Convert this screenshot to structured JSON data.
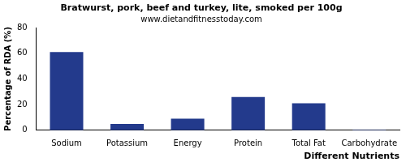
{
  "chart_data": {
    "type": "bar",
    "title": "Bratwurst, pork, beef and turkey, lite, smoked per 100g",
    "subtitle": "www.dietandfitnesstoday.com",
    "x_label": "Different Nutrients",
    "y_label": "Percentage of RDA (%)",
    "categories": [
      "Sodium",
      "Potassium",
      "Energy",
      "Protein",
      "Total Fat",
      "Carbohydrate"
    ],
    "values": [
      61,
      5,
      9,
      26,
      21,
      0.5
    ],
    "color": "#233a8c",
    "ylim": [
      0,
      80
    ],
    "yticks": [
      0,
      20,
      40,
      60,
      80
    ],
    "grid": false
  }
}
